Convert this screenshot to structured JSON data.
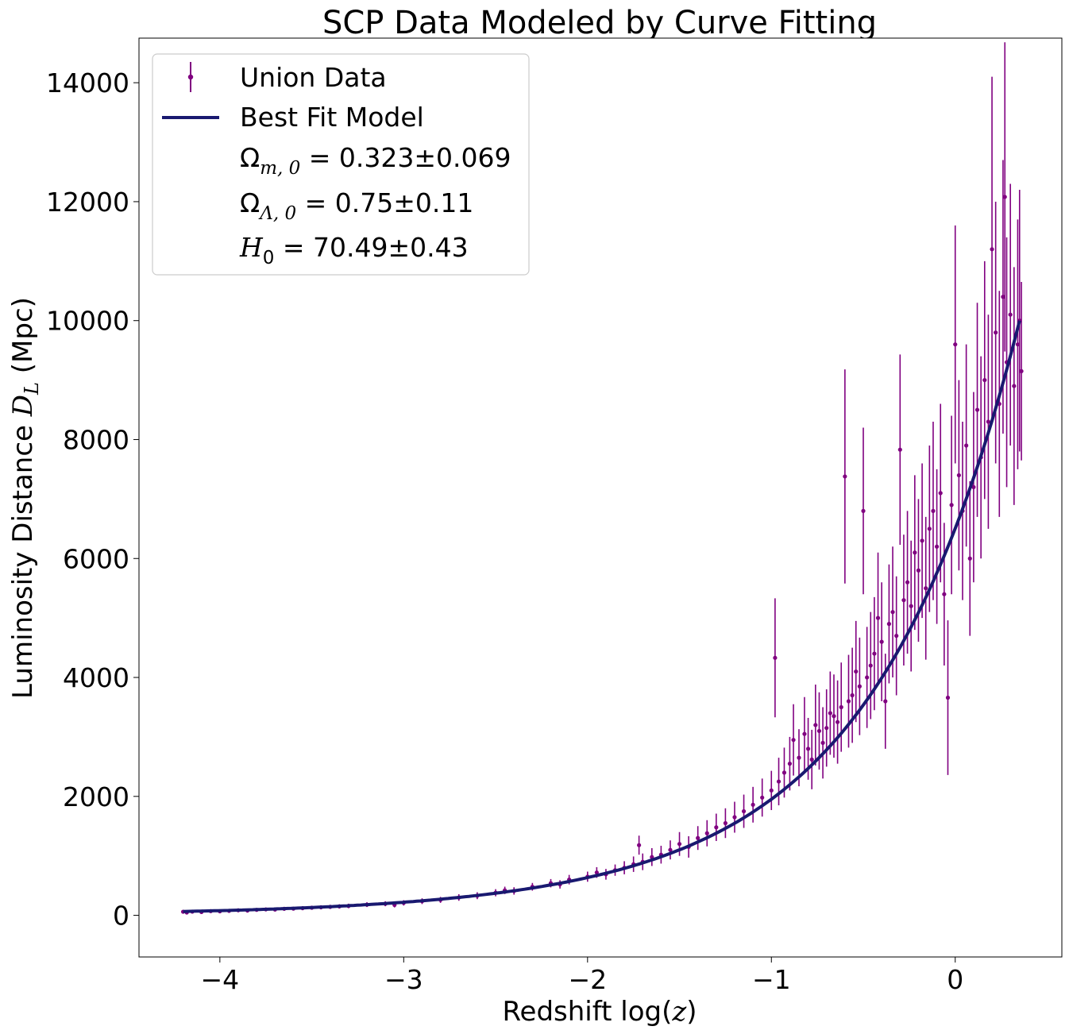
{
  "chart_data": {
    "type": "scatter",
    "title": "SCP Data Modeled by Curve Fitting",
    "xlabel": {
      "text": "Redshift log(",
      "var": "z",
      "close": ")"
    },
    "ylabel": {
      "text": "Luminosity Distance ",
      "var": "D",
      "sub": "L",
      "unit": " (Mpc)"
    },
    "xlim": [
      -4.44,
      0.58
    ],
    "ylim": [
      -700,
      14750
    ],
    "xticks": [
      -4,
      -3,
      -2,
      -1,
      0
    ],
    "xtick_labels": [
      "−4",
      "−3",
      "−2",
      "−1",
      "0"
    ],
    "yticks": [
      0,
      2000,
      4000,
      6000,
      8000,
      10000,
      12000,
      14000
    ],
    "ytick_labels": [
      "0",
      "2000",
      "4000",
      "6000",
      "8000",
      "10000",
      "12000",
      "14000"
    ],
    "grid": false,
    "legend_position": "top-left",
    "series": [
      {
        "name": "Union Data",
        "kind": "errorbar",
        "color": "#800080",
        "points": [
          [
            -4.2,
            60,
            20
          ],
          [
            -4.18,
            48,
            18
          ],
          [
            -4.15,
            62,
            20
          ],
          [
            -4.1,
            55,
            20
          ],
          [
            -4.05,
            70,
            22
          ],
          [
            -4.0,
            68,
            22
          ],
          [
            -3.95,
            75,
            24
          ],
          [
            -3.9,
            85,
            25
          ],
          [
            -3.85,
            80,
            25
          ],
          [
            -3.8,
            92,
            26
          ],
          [
            -3.75,
            100,
            28
          ],
          [
            -3.7,
            98,
            28
          ],
          [
            -3.65,
            110,
            30
          ],
          [
            -3.6,
            112,
            30
          ],
          [
            -3.55,
            120,
            32
          ],
          [
            -3.5,
            128,
            32
          ],
          [
            -3.45,
            135,
            34
          ],
          [
            -3.4,
            142,
            35
          ],
          [
            -3.35,
            150,
            36
          ],
          [
            -3.3,
            158,
            38
          ],
          [
            -3.2,
            180,
            40
          ],
          [
            -3.1,
            195,
            42
          ],
          [
            -3.05,
            175,
            42
          ],
          [
            -3.0,
            210,
            45
          ],
          [
            -2.9,
            238,
            48
          ],
          [
            -2.8,
            260,
            50
          ],
          [
            -2.7,
            300,
            55
          ],
          [
            -2.6,
            330,
            58
          ],
          [
            -2.5,
            380,
            60
          ],
          [
            -2.45,
            420,
            62
          ],
          [
            -2.4,
            410,
            62
          ],
          [
            -2.3,
            480,
            65
          ],
          [
            -2.2,
            540,
            70
          ],
          [
            -2.15,
            520,
            70
          ],
          [
            -2.1,
            600,
            80
          ],
          [
            -2.0,
            650,
            85
          ],
          [
            -1.95,
            720,
            90
          ],
          [
            -1.9,
            690,
            90
          ],
          [
            -1.85,
            760,
            95
          ],
          [
            -1.8,
            800,
            110
          ],
          [
            -1.75,
            860,
            130
          ],
          [
            -1.72,
            1180,
            160
          ],
          [
            -1.7,
            900,
            140
          ],
          [
            -1.65,
            980,
            150
          ],
          [
            -1.6,
            1020,
            150
          ],
          [
            -1.55,
            1100,
            160
          ],
          [
            -1.5,
            1200,
            200
          ],
          [
            -1.45,
            1150,
            180
          ],
          [
            -1.4,
            1300,
            200
          ],
          [
            -1.35,
            1380,
            220
          ],
          [
            -1.3,
            1480,
            230
          ],
          [
            -1.25,
            1550,
            250
          ],
          [
            -1.2,
            1650,
            260
          ],
          [
            -1.15,
            1750,
            280
          ],
          [
            -1.1,
            1860,
            300
          ],
          [
            -1.05,
            1980,
            320
          ],
          [
            -1.0,
            2100,
            330
          ],
          [
            -0.98,
            4330,
            1000
          ],
          [
            -0.96,
            2250,
            400
          ],
          [
            -0.93,
            2400,
            420
          ],
          [
            -0.9,
            2550,
            450
          ],
          [
            -0.88,
            2950,
            600
          ],
          [
            -0.85,
            2650,
            480
          ],
          [
            -0.82,
            3050,
            620
          ],
          [
            -0.8,
            2800,
            520
          ],
          [
            -0.78,
            2620,
            500
          ],
          [
            -0.76,
            3200,
            680
          ],
          [
            -0.74,
            3100,
            650
          ],
          [
            -0.72,
            2900,
            600
          ],
          [
            -0.7,
            3150,
            650
          ],
          [
            -0.68,
            3400,
            700
          ],
          [
            -0.66,
            3350,
            700
          ],
          [
            -0.64,
            3250,
            700
          ],
          [
            -0.62,
            3500,
            750
          ],
          [
            -0.6,
            7380,
            1800
          ],
          [
            -0.58,
            3600,
            780
          ],
          [
            -0.56,
            3700,
            800
          ],
          [
            -0.54,
            4100,
            850
          ],
          [
            -0.52,
            3850,
            820
          ],
          [
            -0.5,
            6800,
            1400
          ],
          [
            -0.48,
            4000,
            850
          ],
          [
            -0.46,
            4200,
            900
          ],
          [
            -0.44,
            4400,
            950
          ],
          [
            -0.42,
            5000,
            1100
          ],
          [
            -0.4,
            4600,
            1000
          ],
          [
            -0.38,
            3600,
            800
          ],
          [
            -0.36,
            4900,
            1000
          ],
          [
            -0.34,
            5100,
            1100
          ],
          [
            -0.32,
            4700,
            1000
          ],
          [
            -0.3,
            7830,
            1600
          ],
          [
            -0.28,
            5300,
            1100
          ],
          [
            -0.26,
            5600,
            1200
          ],
          [
            -0.24,
            5200,
            1100
          ],
          [
            -0.22,
            6100,
            1300
          ],
          [
            -0.2,
            5800,
            1200
          ],
          [
            -0.18,
            6300,
            1300
          ],
          [
            -0.16,
            5500,
            1200
          ],
          [
            -0.14,
            6500,
            1400
          ],
          [
            -0.12,
            6800,
            1500
          ],
          [
            -0.1,
            6200,
            1300
          ],
          [
            -0.08,
            7100,
            1500
          ],
          [
            -0.06,
            5400,
            1200
          ],
          [
            -0.04,
            3660,
            1300
          ],
          [
            -0.02,
            6900,
            1500
          ],
          [
            0.0,
            9600,
            2000
          ],
          [
            0.02,
            7400,
            1600
          ],
          [
            0.04,
            6800,
            1500
          ],
          [
            0.06,
            7900,
            1700
          ],
          [
            0.08,
            6000,
            1300
          ],
          [
            0.1,
            7200,
            1600
          ],
          [
            0.12,
            8500,
            1800
          ],
          [
            0.14,
            7700,
            1700
          ],
          [
            0.16,
            9000,
            2000
          ],
          [
            0.18,
            8300,
            1800
          ],
          [
            0.2,
            11200,
            2900
          ],
          [
            0.22,
            9800,
            2200
          ],
          [
            0.24,
            8600,
            1900
          ],
          [
            0.26,
            10400,
            2300
          ],
          [
            0.27,
            12080,
            2600
          ],
          [
            0.28,
            9300,
            2100
          ],
          [
            0.3,
            10100,
            2200
          ],
          [
            0.32,
            8900,
            2000
          ],
          [
            0.34,
            9600,
            2100
          ],
          [
            0.35,
            10000,
            2200
          ],
          [
            0.36,
            9150,
            1500
          ]
        ]
      },
      {
        "name": "Best Fit Model",
        "kind": "line",
        "color": "#191970",
        "x_range": [
          -4.2,
          0.35
        ]
      }
    ],
    "fit_params": [
      {
        "symbol": "Ω",
        "sub": "m, 0",
        "value": " = 0.323±0.069"
      },
      {
        "symbol": "Ω",
        "sub": "Λ, 0",
        "value": " = 0.75±0.11"
      },
      {
        "symbol": "H",
        "sub": "0",
        "value": " = 70.49±0.43"
      }
    ]
  }
}
